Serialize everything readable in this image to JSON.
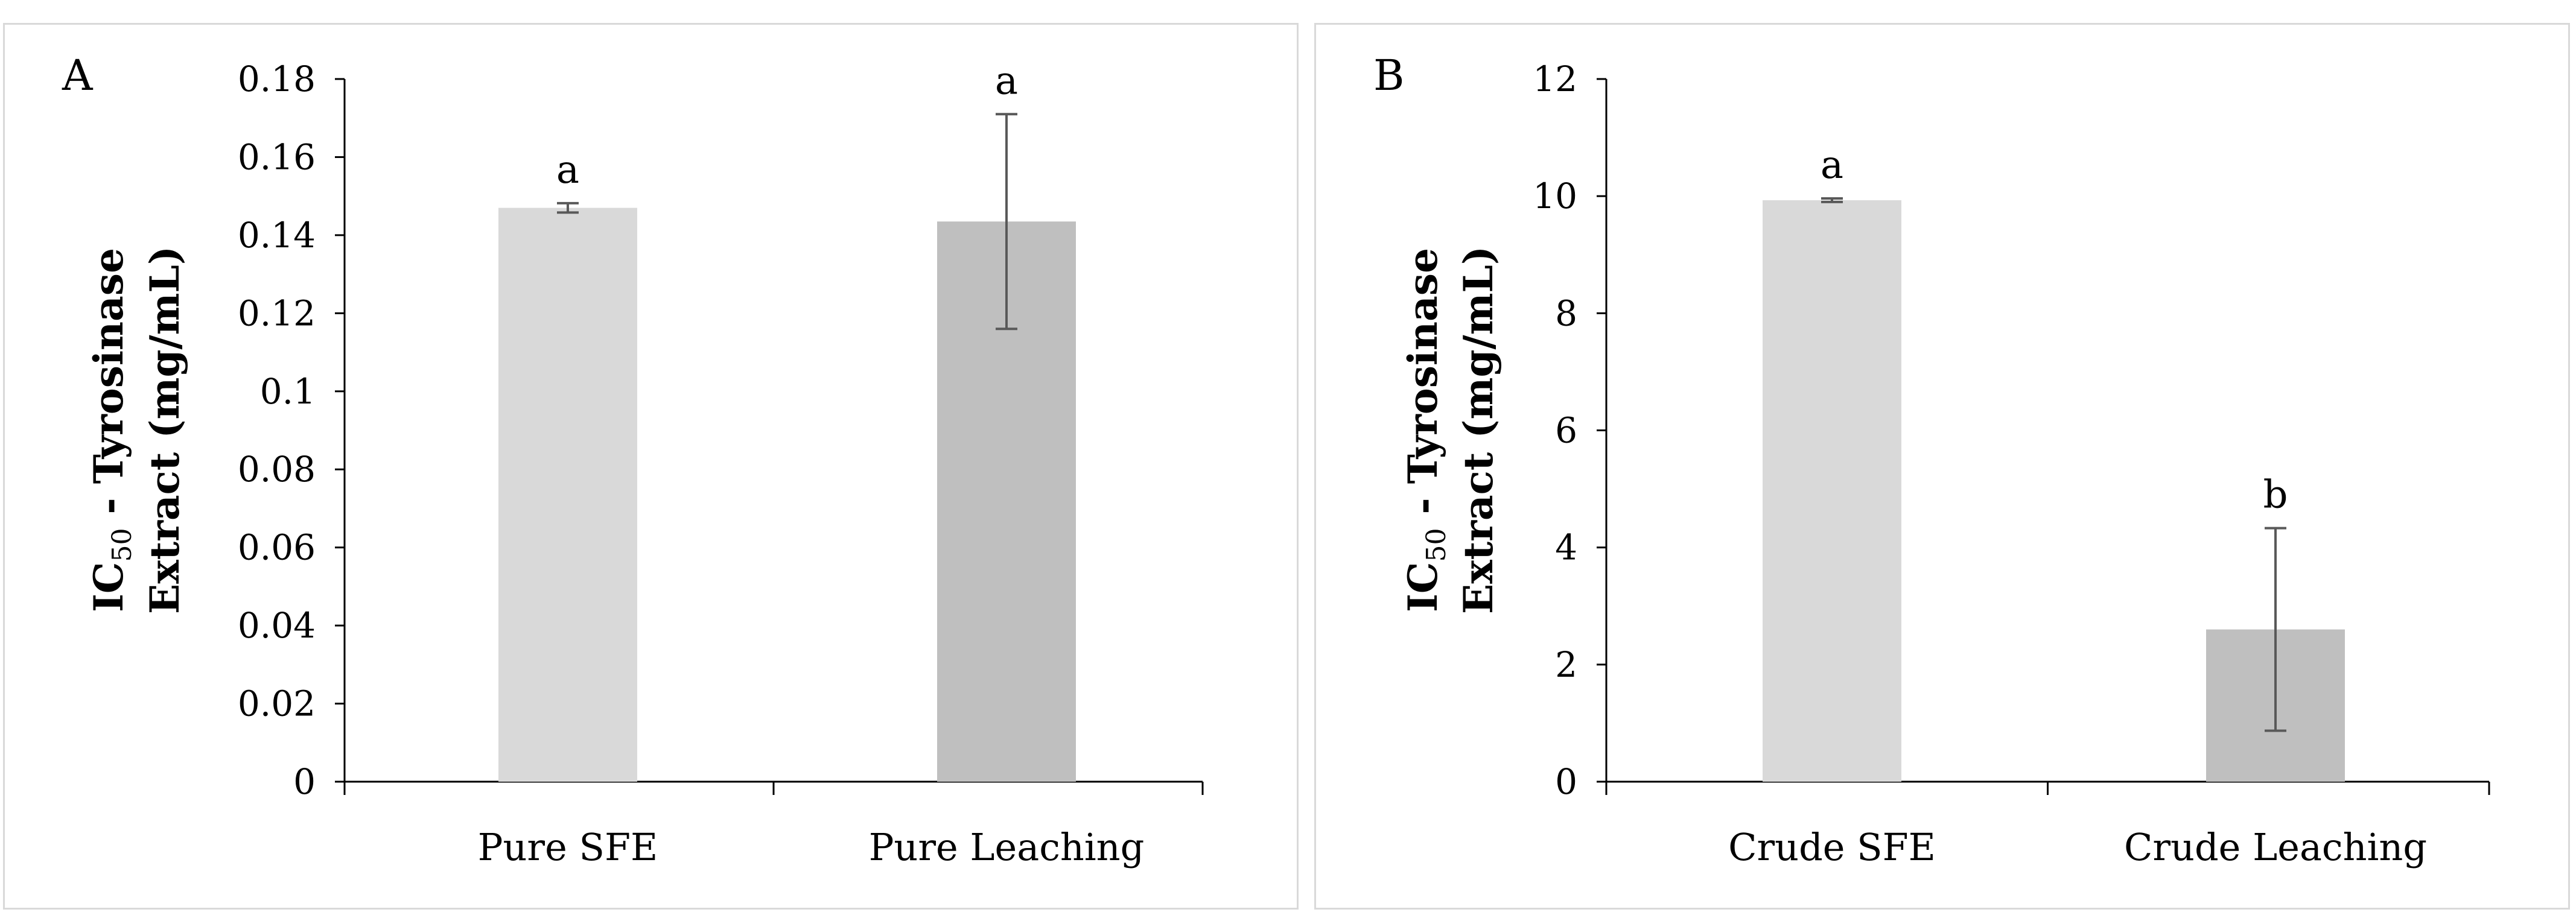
{
  "chart_data": [
    {
      "type": "bar",
      "panel_label": "A",
      "ylabel_line1_main": "IC",
      "ylabel_line1_sub": "50",
      "ylabel_line1_rest": " - Tyrosinase",
      "ylabel_line2": "Extract (mg/mL)",
      "xlabel": "",
      "categories": [
        "Pure SFE",
        "Pure Leaching"
      ],
      "values": [
        0.147,
        0.1435
      ],
      "errors": [
        0.0012,
        0.0275
      ],
      "significance": [
        "a",
        "a"
      ],
      "bar_colors": [
        "#d9d9d9",
        "#bfbfbf"
      ],
      "ylim": [
        0,
        0.18
      ],
      "yticks": [
        "0",
        "0.02",
        "0.04",
        "0.06",
        "0.08",
        "0.1",
        "0.12",
        "0.14",
        "0.16",
        "0.18"
      ],
      "grid": false
    },
    {
      "type": "bar",
      "panel_label": "B",
      "ylabel_line1_main": "IC",
      "ylabel_line1_sub": "50",
      "ylabel_line1_rest": " - Tyrosinase",
      "ylabel_line2": "Extract (mg/mL)",
      "xlabel": "",
      "categories": [
        "Crude SFE",
        "Crude Leaching"
      ],
      "values": [
        9.93,
        2.6
      ],
      "errors": [
        0.03,
        1.73
      ],
      "significance": [
        "a",
        "b"
      ],
      "bar_colors": [
        "#d9d9d9",
        "#bfbfbf"
      ],
      "ylim": [
        0,
        12
      ],
      "yticks": [
        "0",
        "2",
        "4",
        "6",
        "8",
        "10",
        "12"
      ],
      "grid": false
    }
  ]
}
